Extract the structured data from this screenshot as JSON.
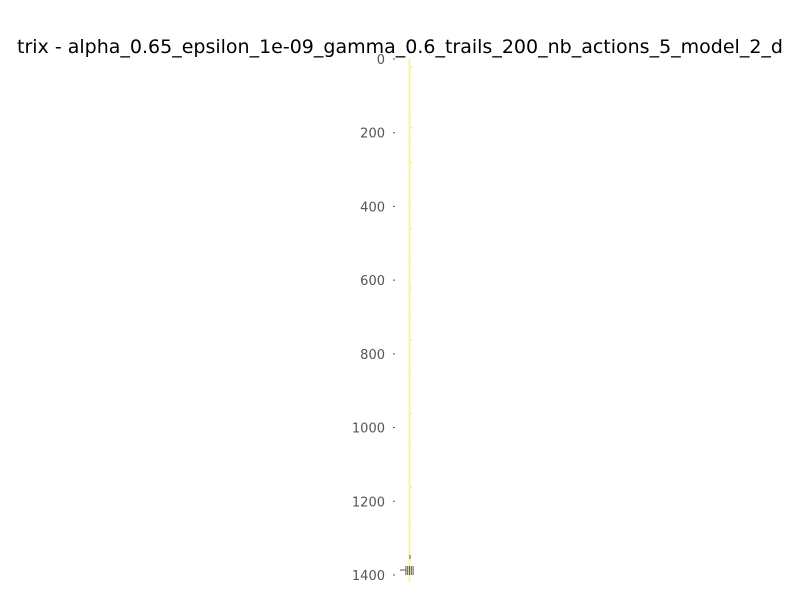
{
  "chart_data": {
    "type": "heatmap",
    "title": "trix - alpha_0.65_epsilon_1e-09_gamma_0.6_trails_200_nb_actions_5_model_2_d",
    "xlabel": "",
    "ylabel": "",
    "ylim": [
      0,
      1400
    ],
    "y_ticks": [
      0,
      200,
      400,
      600,
      800,
      1000,
      1200,
      1400
    ],
    "y_tick_labels": [
      "0",
      "200",
      "400",
      "600",
      "800",
      "1000",
      "1200",
      "1400"
    ],
    "n_rows": 1400,
    "n_cols": 5,
    "colormap": "viridis",
    "grid": false,
    "colors": {
      "cell_base": "#fde725",
      "cell_alt": "#f5f0b0",
      "tick": "#555555",
      "title": "#000000"
    },
    "highlighted_rows": [
      20,
      150,
      185,
      215,
      280,
      390,
      460,
      540,
      620,
      700,
      760,
      845,
      960,
      1045,
      1160,
      1265,
      1380
    ]
  }
}
